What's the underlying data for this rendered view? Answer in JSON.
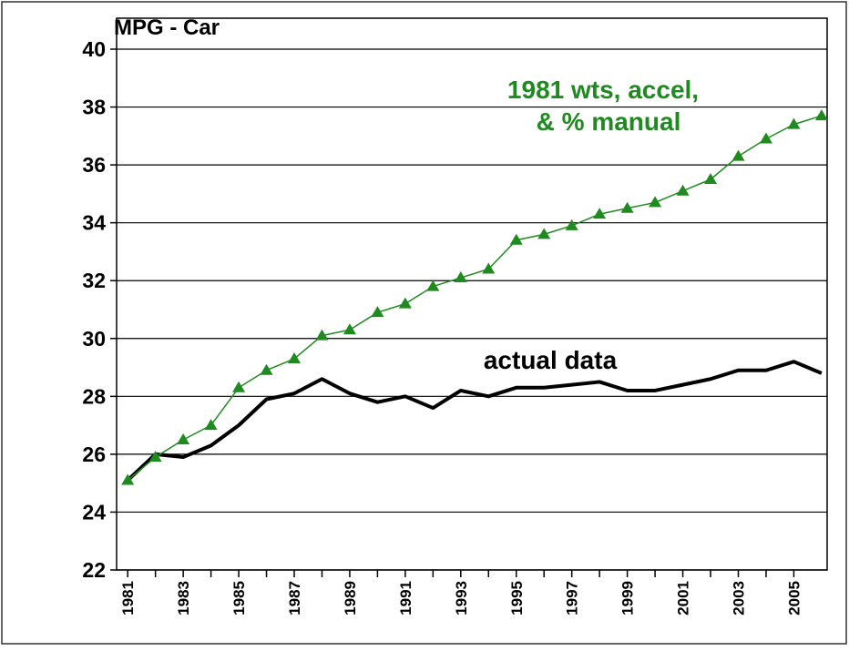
{
  "chart_data": {
    "type": "line",
    "title": "MPG - Car",
    "x": [
      1981,
      1982,
      1983,
      1984,
      1985,
      1986,
      1987,
      1988,
      1989,
      1990,
      1991,
      1992,
      1993,
      1994,
      1995,
      1996,
      1997,
      1998,
      1999,
      2000,
      2001,
      2002,
      2003,
      2004,
      2005,
      2006
    ],
    "series": [
      {
        "color": "#000000",
        "marker": "none",
        "values": [
          25.1,
          26.0,
          25.9,
          26.3,
          27.0,
          27.9,
          28.1,
          28.6,
          28.1,
          27.8,
          28.0,
          27.6,
          28.2,
          28.0,
          28.3,
          28.3,
          28.4,
          28.5,
          28.2,
          28.2,
          28.4,
          28.6,
          28.9,
          28.9,
          29.2,
          28.8
        ]
      },
      {
        "color": "#1f8a1f",
        "marker": "triangle",
        "values": [
          25.1,
          25.9,
          26.5,
          27.0,
          28.3,
          28.9,
          29.3,
          30.1,
          30.3,
          30.9,
          31.2,
          31.8,
          32.1,
          32.4,
          33.4,
          33.6,
          33.9,
          34.3,
          34.5,
          34.7,
          35.1,
          35.5,
          36.3,
          36.9,
          37.4,
          37.7
        ]
      }
    ],
    "annotations": [
      {
        "text": "1981 wts, accel,",
        "color": "#1f8a1f"
      },
      {
        "text": "& % manual",
        "color": "#1f8a1f"
      },
      {
        "text": "actual data",
        "color": "#000000"
      }
    ],
    "xlim": [
      1980.6,
      2006.2
    ],
    "xticks": [
      1981,
      1983,
      1985,
      1987,
      1989,
      1991,
      1993,
      1995,
      1997,
      1999,
      2001,
      2003,
      2005
    ],
    "ylim": [
      22,
      40
    ],
    "yticks": [
      22,
      24,
      26,
      28,
      30,
      32,
      34,
      36,
      38,
      40
    ],
    "grid": true
  }
}
